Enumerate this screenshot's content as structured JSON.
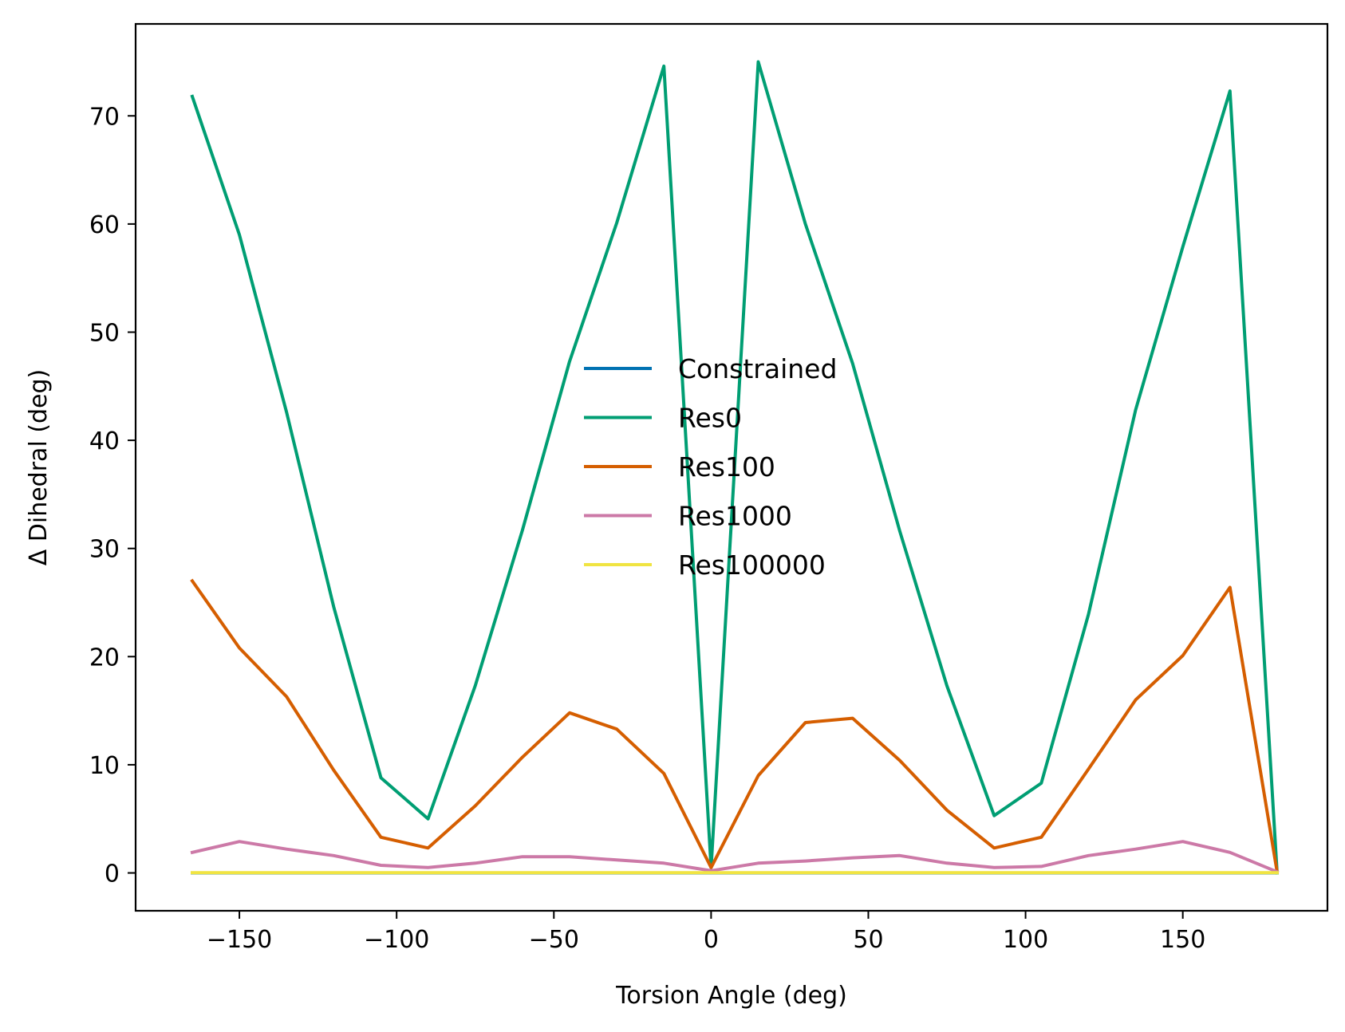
{
  "chart_data": {
    "type": "line",
    "title": "",
    "xlabel": "Torsion Angle (deg)",
    "ylabel": "Δ Dihedral (deg)",
    "xlim": [
      -183,
      196
    ],
    "ylim": [
      -3.5,
      78.5
    ],
    "xticks": [
      -150,
      -100,
      -50,
      0,
      50,
      100,
      150
    ],
    "xtick_labels": [
      "−150",
      "−100",
      "−50",
      "0",
      "50",
      "100",
      "150"
    ],
    "yticks": [
      0,
      10,
      20,
      30,
      40,
      50,
      60,
      70
    ],
    "ytick_labels": [
      "0",
      "10",
      "20",
      "30",
      "40",
      "50",
      "60",
      "70"
    ],
    "grid": false,
    "legend_position": "center",
    "x": [
      -165,
      -150,
      -135,
      -120,
      -105,
      -90,
      -75,
      -60,
      -45,
      -30,
      -15,
      0,
      15,
      30,
      45,
      60,
      75,
      90,
      105,
      120,
      135,
      150,
      165,
      180
    ],
    "series": [
      {
        "name": "Constrained",
        "color": "#0072B2",
        "values": [
          0,
          0,
          0,
          0,
          0,
          0,
          0,
          0,
          0,
          0,
          0,
          0,
          0,
          0,
          0,
          0,
          0,
          0,
          0,
          0,
          0,
          0,
          0,
          0
        ]
      },
      {
        "name": "Res0",
        "color": "#009E73",
        "values": [
          71.8,
          59.0,
          42.6,
          24.6,
          8.8,
          5.0,
          17.3,
          31.7,
          47.3,
          60.1,
          74.6,
          0.5,
          75.0,
          60.0,
          47.1,
          31.6,
          17.3,
          5.3,
          8.3,
          23.9,
          42.8,
          57.9,
          72.3,
          0.0
        ]
      },
      {
        "name": "Res100",
        "color": "#D55E00",
        "values": [
          27.0,
          20.8,
          16.3,
          9.5,
          3.3,
          2.3,
          6.2,
          10.7,
          14.8,
          13.3,
          9.2,
          0.5,
          9.0,
          13.9,
          14.3,
          10.4,
          5.8,
          2.3,
          3.3,
          9.6,
          16.0,
          20.1,
          26.4,
          0.1
        ]
      },
      {
        "name": "Res1000",
        "color": "#CC79A7",
        "values": [
          1.9,
          2.9,
          2.2,
          1.6,
          0.7,
          0.5,
          0.9,
          1.5,
          1.5,
          1.2,
          0.9,
          0.2,
          0.9,
          1.1,
          1.4,
          1.6,
          0.9,
          0.5,
          0.6,
          1.6,
          2.2,
          2.9,
          1.9,
          0.1
        ]
      },
      {
        "name": "Res100000",
        "color": "#F0E442",
        "values": [
          0.02,
          0.02,
          0.02,
          0.02,
          0.02,
          0.02,
          0.02,
          0.02,
          0.02,
          0.02,
          0.02,
          0.02,
          0.02,
          0.02,
          0.02,
          0.02,
          0.02,
          0.02,
          0.02,
          0.02,
          0.02,
          0.02,
          0.02,
          0.02
        ]
      }
    ]
  }
}
